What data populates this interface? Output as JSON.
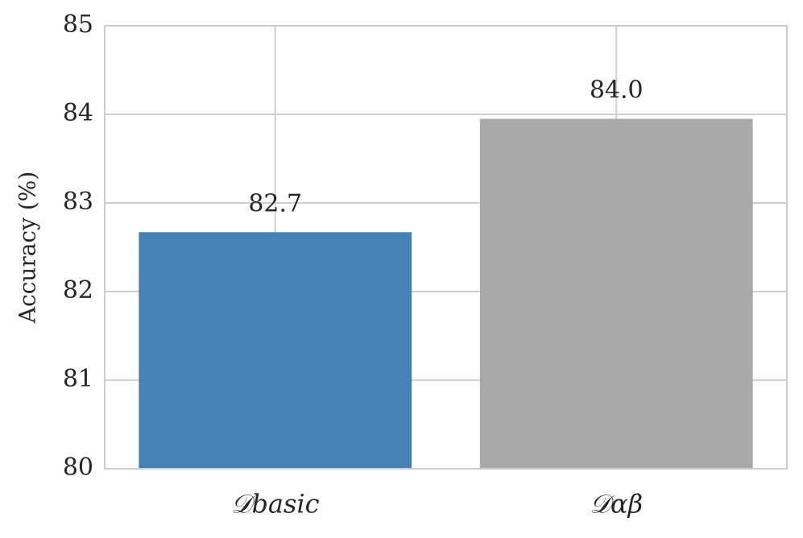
{
  "chart_data": {
    "type": "bar",
    "y_label": "Accuracy (%)",
    "categories": [
      "𝒟basic",
      "𝒟αβ"
    ],
    "series": [
      {
        "colors": [
          "#4682b4",
          "#a9a9a9"
        ],
        "values": [
          82.67,
          83.95
        ],
        "value_labels": [
          "82.7",
          "84.0"
        ]
      }
    ],
    "ylim": [
      80,
      85
    ],
    "yticks": [
      80,
      81,
      82,
      83,
      84,
      85
    ],
    "grid": true
  }
}
